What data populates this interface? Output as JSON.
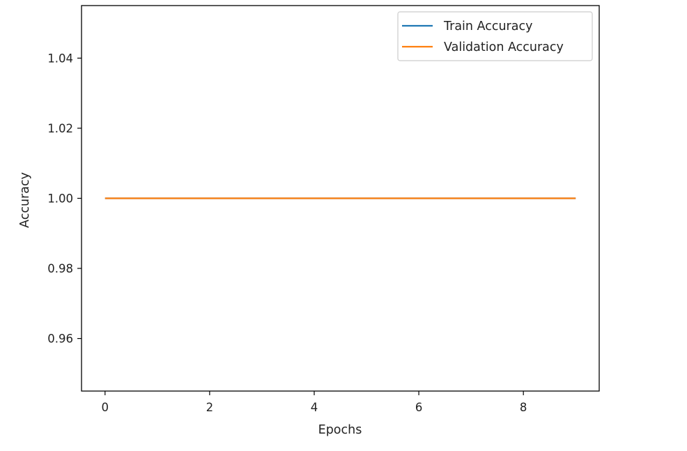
{
  "chart_data": {
    "type": "line",
    "title": "",
    "xlabel": "Epochs",
    "ylabel": "Accuracy",
    "xlim": [
      -0.45,
      9.45
    ],
    "ylim": [
      0.945,
      1.055
    ],
    "x_ticks": [
      0,
      2,
      4,
      6,
      8
    ],
    "y_ticks": [
      0.96,
      0.98,
      1.0,
      1.02,
      1.04
    ],
    "y_tick_labels": [
      "0.96",
      "0.98",
      "1.00",
      "1.02",
      "1.04"
    ],
    "grid": false,
    "legend_position": "top-right",
    "x": [
      0,
      1,
      2,
      3,
      4,
      5,
      6,
      7,
      8,
      9
    ],
    "series": [
      {
        "name": "Train Accuracy",
        "color": "#1f77b4",
        "values": [
          1.0,
          1.0,
          1.0,
          1.0,
          1.0,
          1.0,
          1.0,
          1.0,
          1.0,
          1.0
        ]
      },
      {
        "name": "Validation Accuracy",
        "color": "#ff7f0e",
        "values": [
          1.0,
          1.0,
          1.0,
          1.0,
          1.0,
          1.0,
          1.0,
          1.0,
          1.0,
          1.0
        ]
      }
    ]
  }
}
